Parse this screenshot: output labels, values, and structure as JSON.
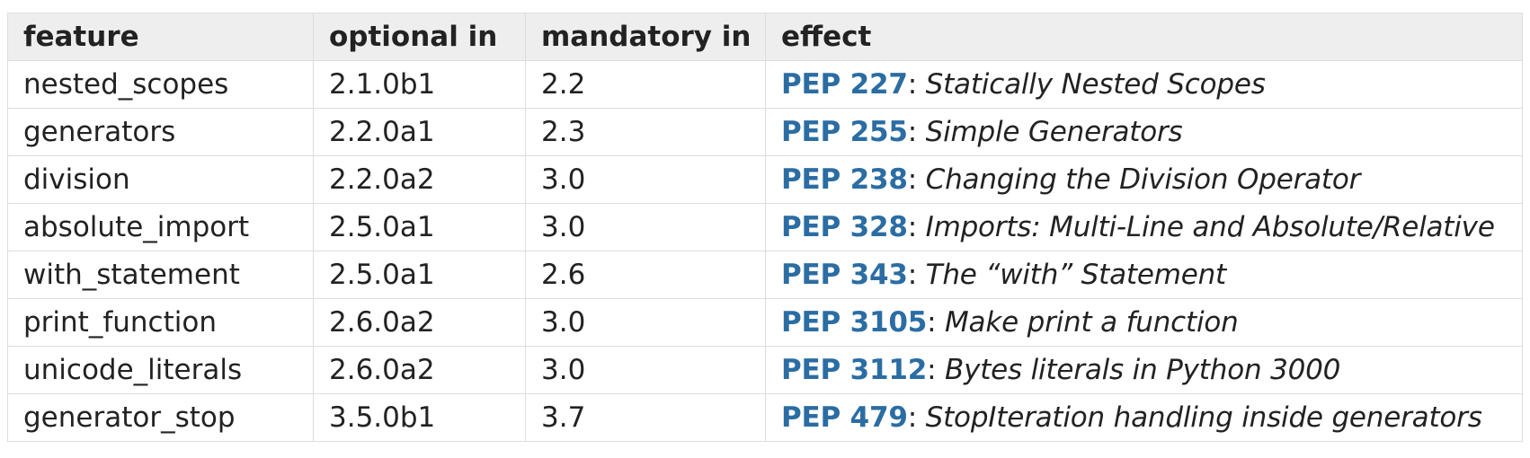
{
  "table": {
    "headers": [
      "feature",
      "optional in",
      "mandatory in",
      "effect"
    ],
    "rows": [
      {
        "feature": "nested_scopes",
        "optional": "2.1.0b1",
        "mandatory": "2.2",
        "pep": "PEP 227",
        "title": "Statically Nested Scopes"
      },
      {
        "feature": "generators",
        "optional": "2.2.0a1",
        "mandatory": "2.3",
        "pep": "PEP 255",
        "title": "Simple Generators"
      },
      {
        "feature": "division",
        "optional": "2.2.0a2",
        "mandatory": "3.0",
        "pep": "PEP 238",
        "title": "Changing the Division Operator"
      },
      {
        "feature": "absolute_import",
        "optional": "2.5.0a1",
        "mandatory": "3.0",
        "pep": "PEP 328",
        "title": "Imports: Multi-Line and Absolute/Relative"
      },
      {
        "feature": "with_statement",
        "optional": "2.5.0a1",
        "mandatory": "2.6",
        "pep": "PEP 343",
        "title": "The “with” Statement"
      },
      {
        "feature": "print_function",
        "optional": "2.6.0a2",
        "mandatory": "3.0",
        "pep": "PEP 3105",
        "title": "Make print a function"
      },
      {
        "feature": "unicode_literals",
        "optional": "2.6.0a2",
        "mandatory": "3.0",
        "pep": "PEP 3112",
        "title": "Bytes literals in Python 3000"
      },
      {
        "feature": "generator_stop",
        "optional": "3.5.0b1",
        "mandatory": "3.7",
        "pep": "PEP 479",
        "title": "StopIteration handling inside generators"
      }
    ],
    "separator": ":",
    "link_color": "#2b6da3"
  }
}
